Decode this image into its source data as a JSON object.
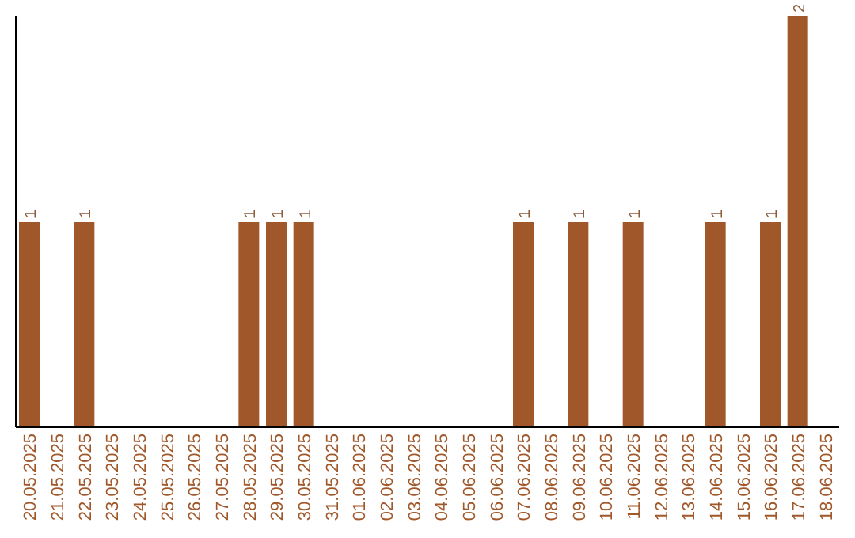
{
  "chart_data": {
    "type": "bar",
    "categories": [
      "20.05.2025",
      "21.05.2025",
      "22.05.2025",
      "23.05.2025",
      "24.05.2025",
      "25.05.2025",
      "26.05.2025",
      "27.05.2025",
      "28.05.2025",
      "29.05.2025",
      "30.05.2025",
      "31.05.2025",
      "01.06.2025",
      "02.06.2025",
      "03.06.2025",
      "04.06.2025",
      "05.06.2025",
      "06.06.2025",
      "07.06.2025",
      "08.06.2025",
      "09.06.2025",
      "10.06.2025",
      "11.06.2025",
      "12.06.2025",
      "13.06.2025",
      "14.06.2025",
      "15.06.2025",
      "16.06.2025",
      "17.06.2025",
      "18.06.2025"
    ],
    "values": [
      1,
      0,
      1,
      0,
      0,
      0,
      0,
      0,
      1,
      1,
      1,
      0,
      0,
      0,
      0,
      0,
      0,
      0,
      1,
      0,
      1,
      0,
      1,
      0,
      0,
      1,
      0,
      1,
      2,
      0
    ],
    "value_labels": [
      "1",
      null,
      "1",
      null,
      null,
      null,
      null,
      null,
      "1",
      "1",
      "1",
      null,
      null,
      null,
      null,
      null,
      null,
      null,
      "1",
      null,
      "1",
      null,
      "1",
      null,
      null,
      "1",
      null,
      "1",
      "2",
      null
    ],
    "color": "#a0582a",
    "ylim": [
      0,
      2
    ],
    "tick_labels": "x",
    "grid": false,
    "legend": false
  }
}
